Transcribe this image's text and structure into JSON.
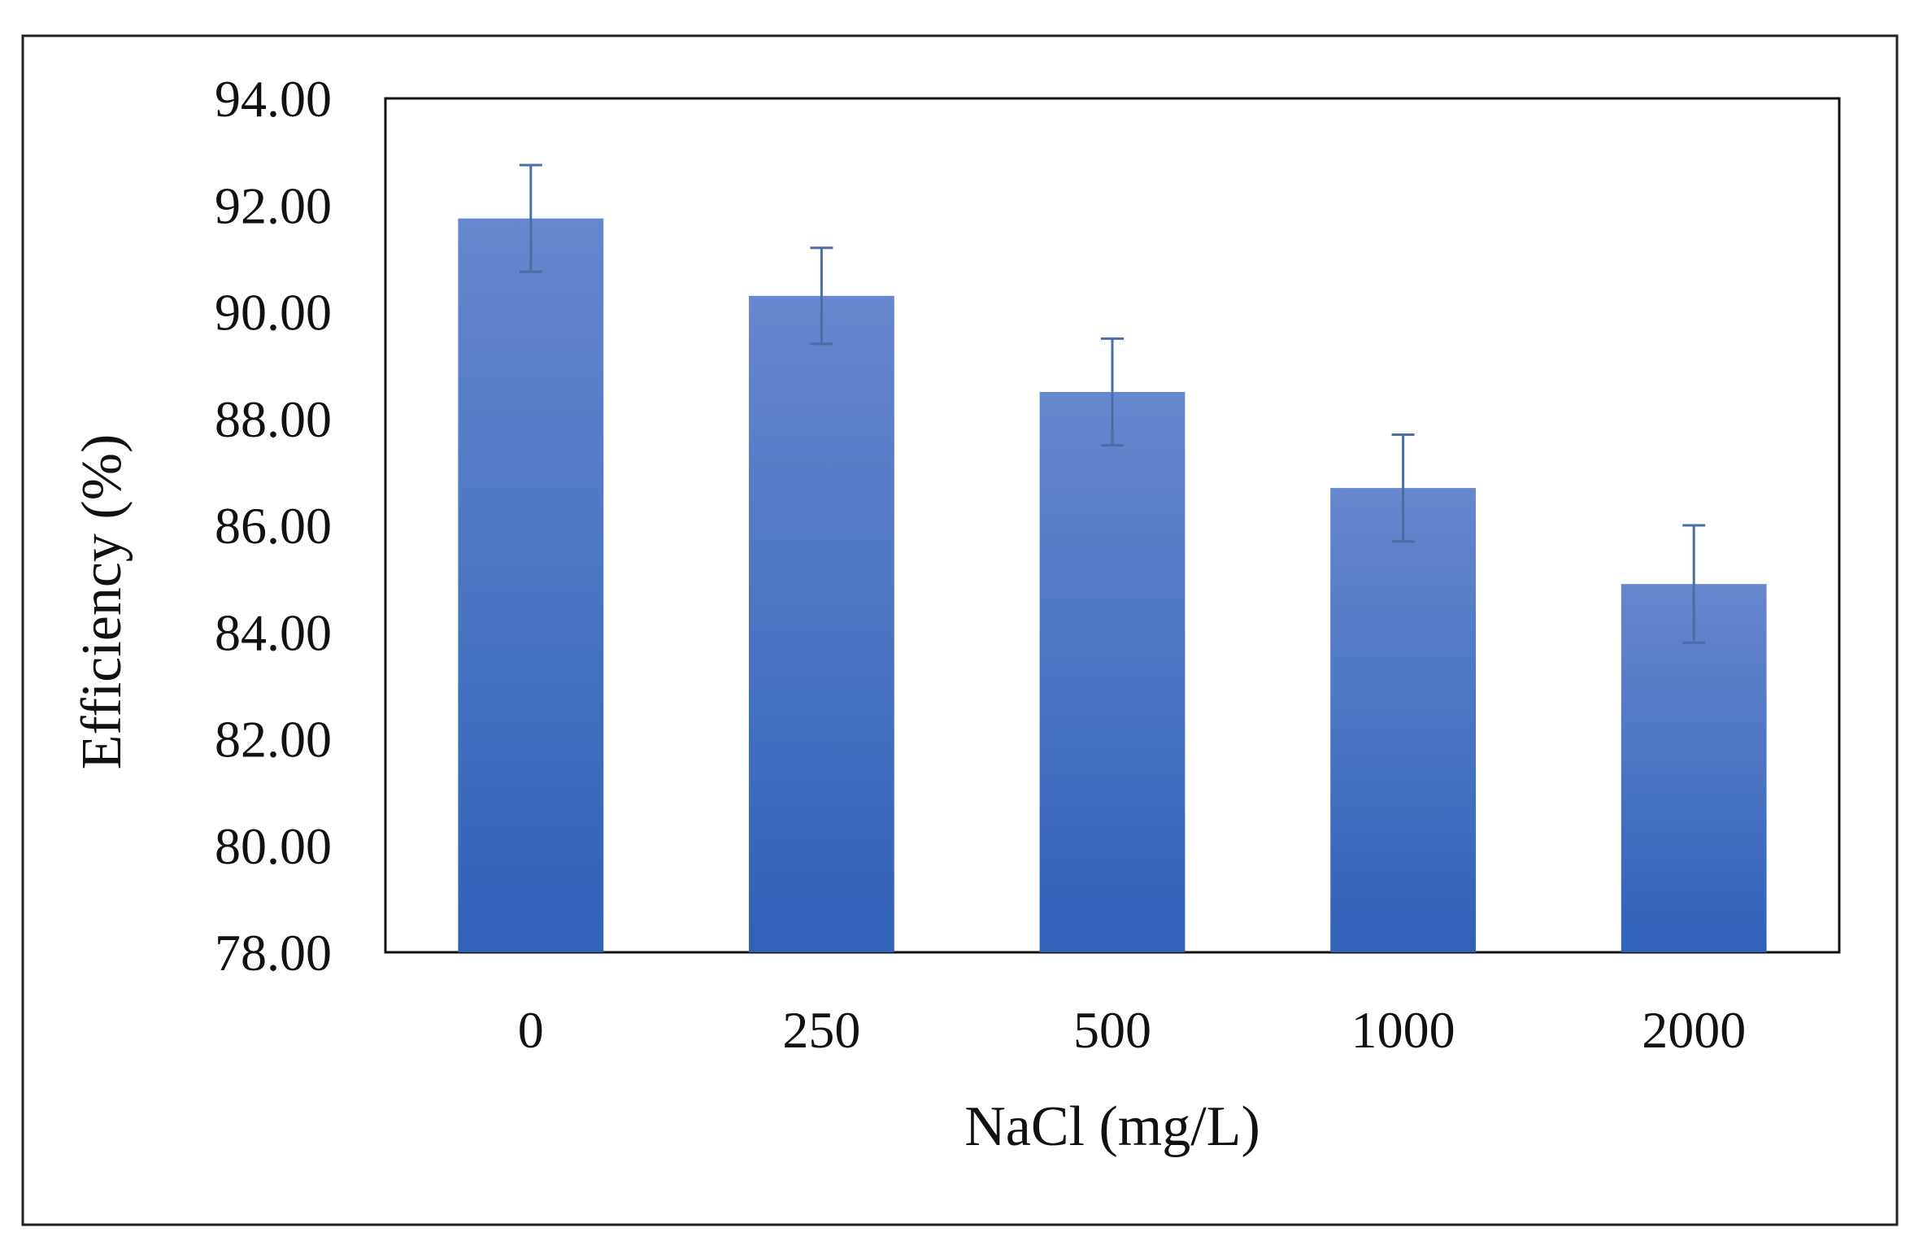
{
  "chart_data": {
    "type": "bar",
    "categories": [
      "0",
      "250",
      "500",
      "1000",
      "2000"
    ],
    "values": [
      91.75,
      90.3,
      88.5,
      86.7,
      84.9
    ],
    "error": [
      1.0,
      0.9,
      1.0,
      1.0,
      1.1
    ],
    "xlabel": "NaCl  (mg/L)",
    "ylabel": "Efficiency (%)",
    "ylim": [
      78,
      94
    ],
    "yticks": [
      "78.00",
      "80.00",
      "82.00",
      "84.00",
      "86.00",
      "88.00",
      "90.00",
      "92.00",
      "94.00"
    ],
    "ytick_values": [
      78,
      80,
      82,
      84,
      86,
      88,
      90,
      92,
      94
    ],
    "grid": false,
    "legend": "none",
    "bar_color_top": "#6787ce",
    "bar_color_bottom": "#2f62b8",
    "error_bar_color": "#4a6fa5"
  }
}
